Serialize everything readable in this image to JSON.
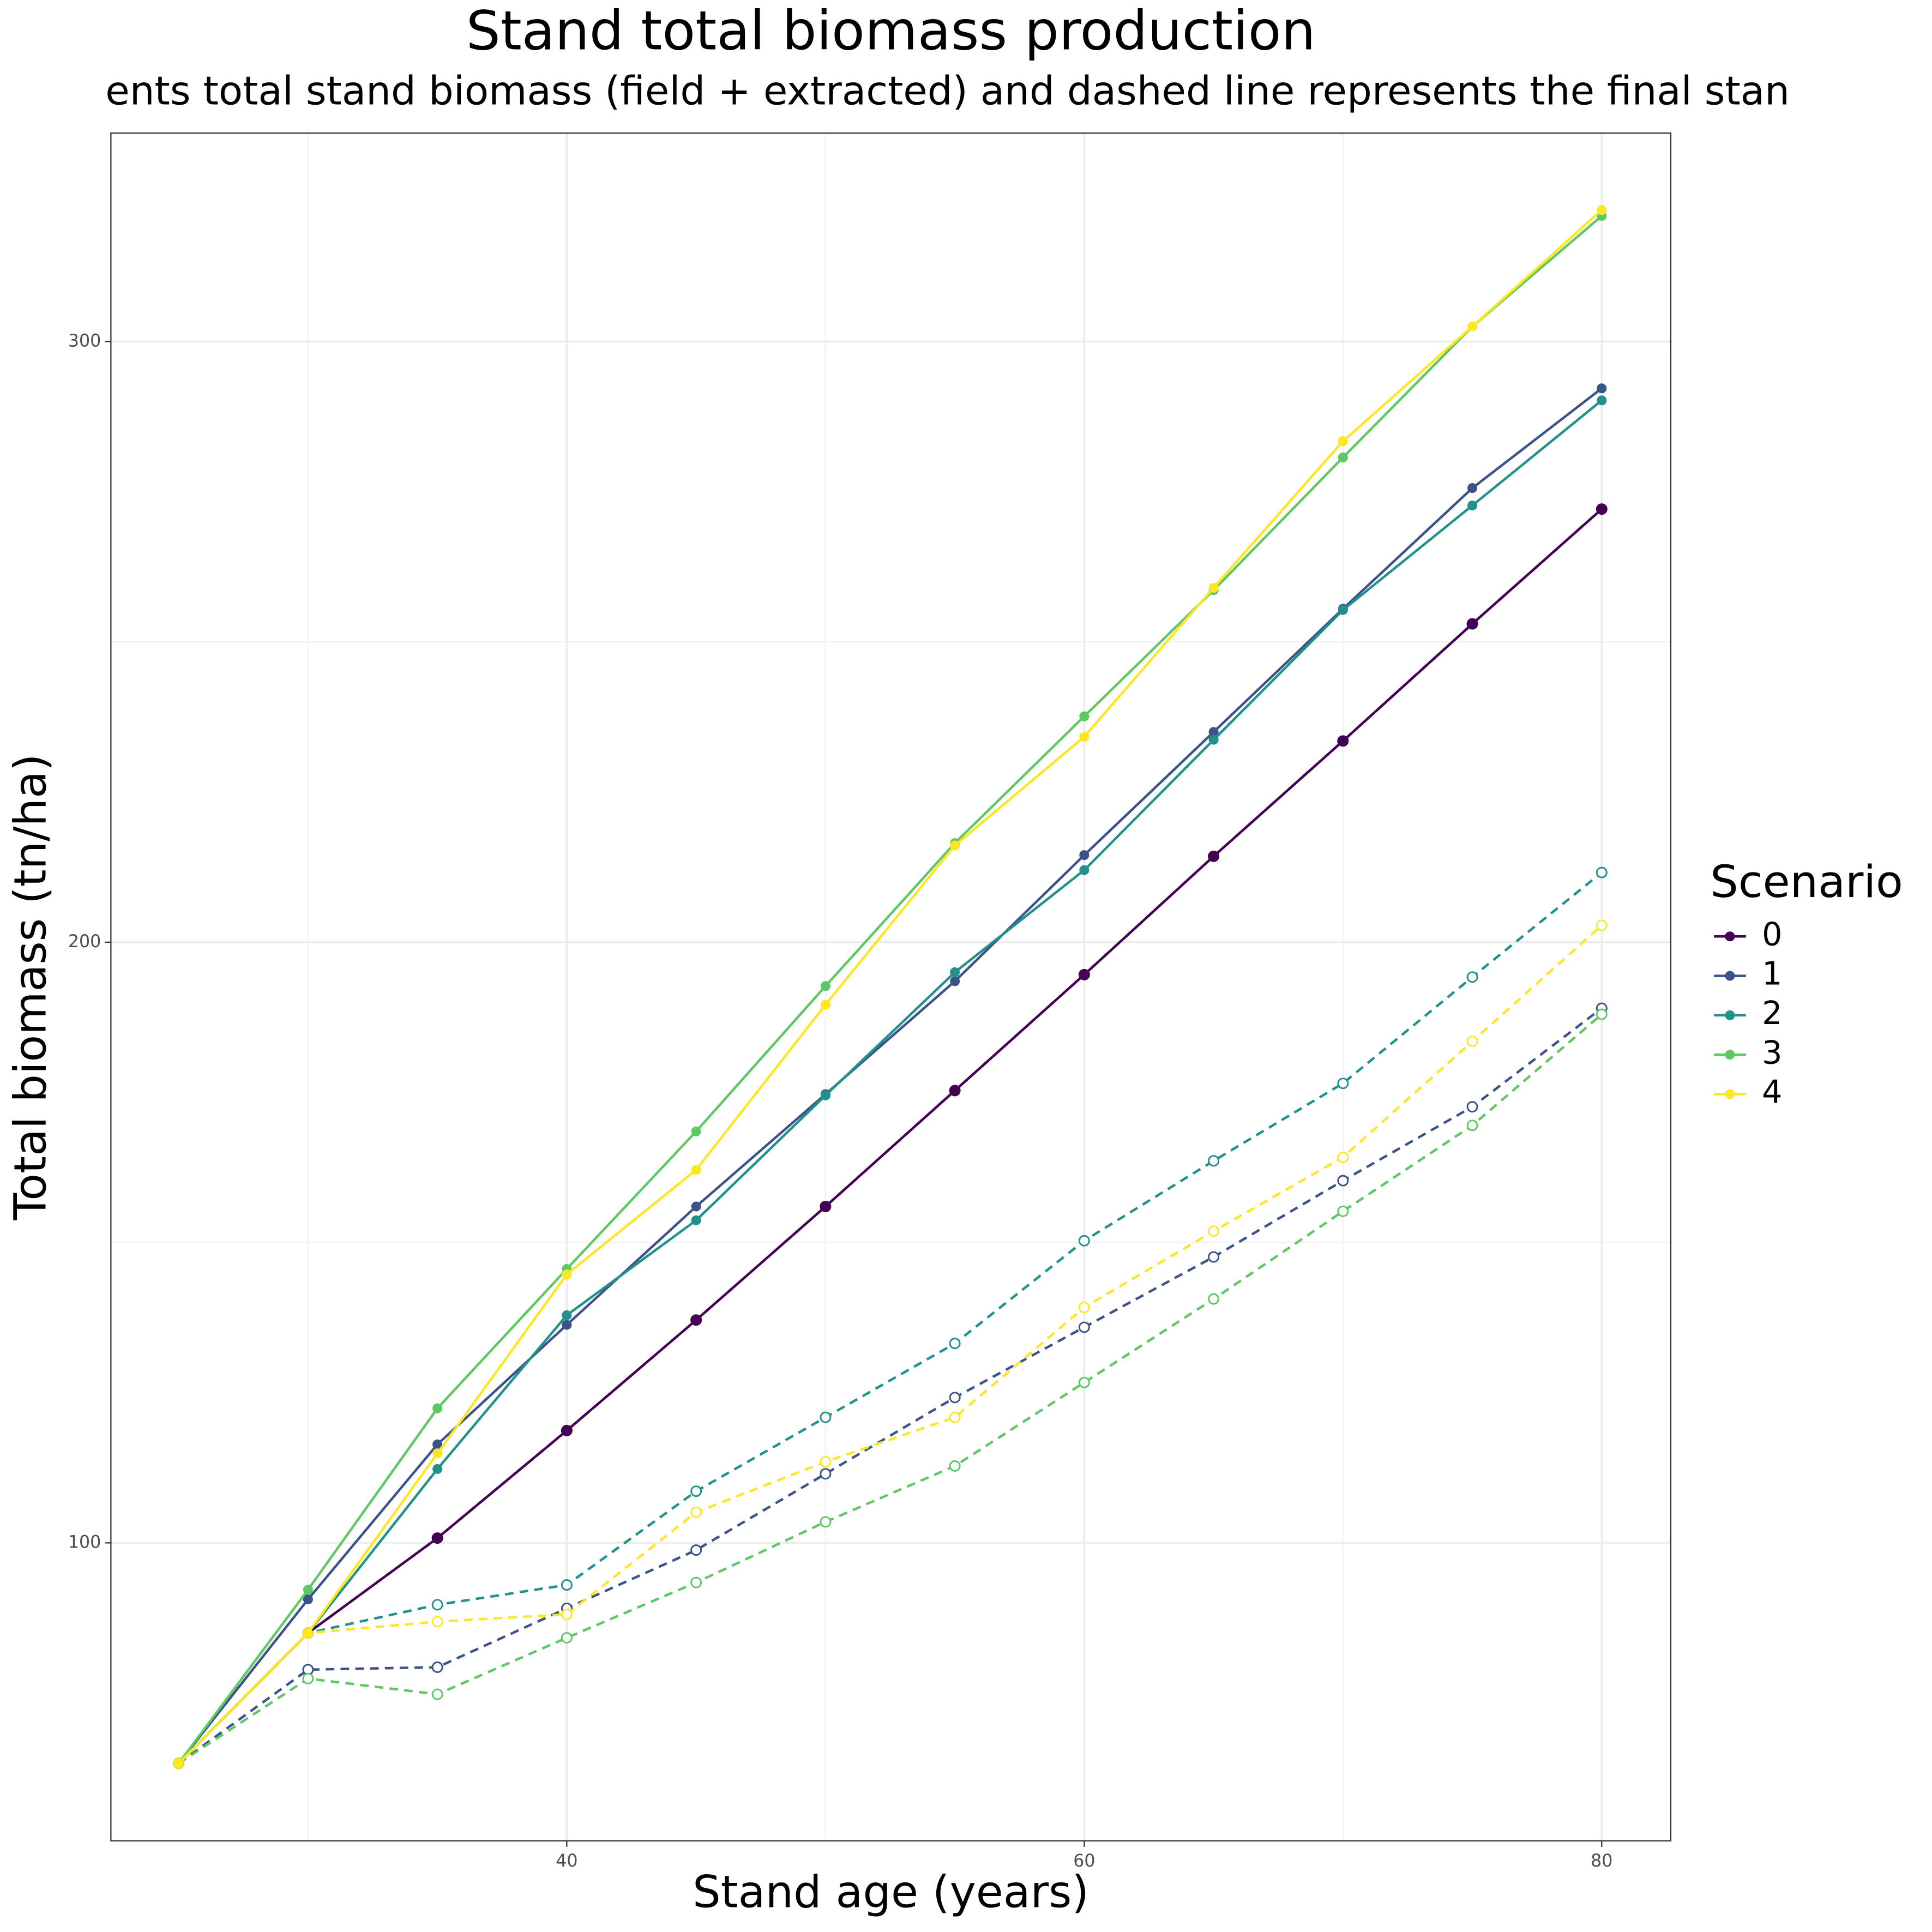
{
  "chart_data": {
    "type": "line",
    "title": "Stand total biomass production",
    "subtitle": "ents total stand biomass (field + extracted) and dashed line represents the final stan",
    "x_label": "Stand age (years)",
    "y_label": "Total biomass (tn/ha)",
    "legend_title": "Scenario",
    "legend_position": "right",
    "grid": true,
    "x": [
      25,
      30,
      35,
      40,
      45,
      50,
      55,
      60,
      65,
      70,
      75,
      80
    ],
    "xlim": [
      22.38,
      82.67
    ],
    "xticks": [
      40,
      60,
      80
    ],
    "xgrid_minor": [
      30,
      50,
      70
    ],
    "ylim": [
      50.4,
      334.7
    ],
    "yticks": [
      100,
      200,
      300
    ],
    "ygrid_minor": [
      150,
      250
    ],
    "series": [
      {
        "name": "0",
        "color": "#440154",
        "values": [
          63.3,
          85.0,
          100.8,
          118.7,
          137.1,
          156.0,
          175.3,
          194.6,
          214.3,
          233.5,
          253.0,
          272.1
        ],
        "final_values": [
          63.3,
          85.0,
          100.8,
          118.7,
          137.1,
          156.0,
          175.3,
          194.6,
          214.3,
          233.5,
          253.0,
          272.1
        ]
      },
      {
        "name": "1",
        "color": "#3b528b",
        "values": [
          63.3,
          90.6,
          116.4,
          136.3,
          156.0,
          174.7,
          193.5,
          214.5,
          235.0,
          255.5,
          275.6,
          292.2
        ],
        "final_values": [
          63.3,
          78.9,
          79.3,
          89.1,
          98.8,
          111.5,
          124.2,
          135.9,
          147.6,
          160.3,
          172.6,
          189.0
        ]
      },
      {
        "name": "2",
        "color": "#21918c",
        "values": [
          63.3,
          85.0,
          112.3,
          137.9,
          153.7,
          174.5,
          195.0,
          212.0,
          233.7,
          255.3,
          272.7,
          290.2
        ],
        "final_values": [
          63.3,
          85.0,
          89.7,
          93.0,
          108.6,
          120.9,
          133.2,
          150.3,
          163.6,
          176.5,
          194.2,
          211.6
        ]
      },
      {
        "name": "3",
        "color": "#5ec962",
        "values": [
          63.3,
          92.2,
          122.4,
          145.6,
          168.5,
          192.7,
          216.5,
          237.6,
          258.6,
          280.7,
          302.5,
          320.9
        ],
        "final_values": [
          63.3,
          77.4,
          74.8,
          84.2,
          93.4,
          103.5,
          112.8,
          126.7,
          140.6,
          155.2,
          169.5,
          188.0
        ]
      },
      {
        "name": "4",
        "color": "#fde725",
        "values": [
          63.3,
          85.0,
          114.9,
          144.7,
          162.1,
          189.6,
          216.1,
          234.2,
          259.0,
          283.4,
          302.5,
          321.9
        ],
        "final_values": [
          63.3,
          85.0,
          86.9,
          88.1,
          105.1,
          113.5,
          120.9,
          139.2,
          151.9,
          164.2,
          183.5,
          202.8
        ]
      }
    ]
  }
}
